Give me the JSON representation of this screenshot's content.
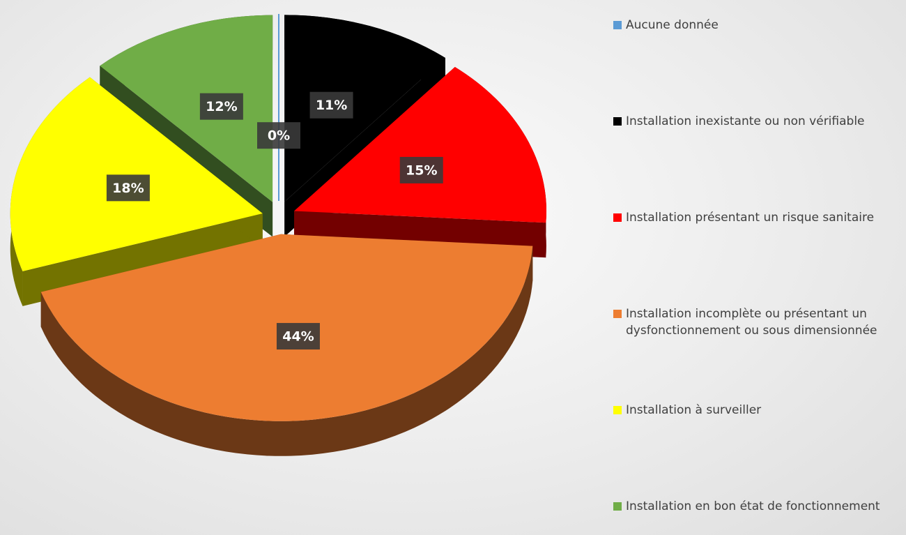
{
  "chart_data": {
    "type": "pie",
    "categories": [
      "Aucune donnée",
      "Installation inexistante ou non vérifiable",
      "Installation présentant un risque sanitaire",
      "Installation incomplète ou présentant un dysfonctionnement ou sous dimensionnée",
      "Installation à surveiller",
      "Installation en bon état de fonctionnement"
    ],
    "values": [
      0,
      11,
      15,
      44,
      18,
      12
    ],
    "value_labels": [
      "0%",
      "11%",
      "15%",
      "44%",
      "18%",
      "12%"
    ],
    "colors": [
      "#5b9bd5",
      "#000000",
      "#ff0000",
      "#ed7d31",
      "#ffff00",
      "#70ad47"
    ]
  }
}
